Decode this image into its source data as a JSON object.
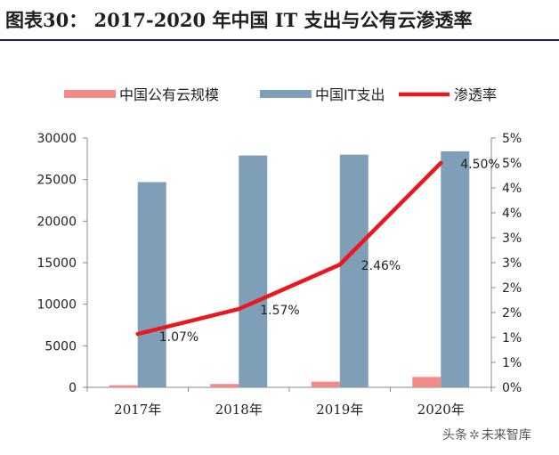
{
  "title": "图表30：  2017-2020 年中国 IT 支出与公有云渗透率",
  "watermark": {
    "prefix": "头条",
    "brand": "未来智库"
  },
  "colors": {
    "cloud": "#f28a87",
    "it": "#7f9fb8",
    "rate": "#e8191e",
    "axis": "#888888",
    "title_rule": "#1a1a6e"
  },
  "chart_data": {
    "type": "bar",
    "categories": [
      "2017年",
      "2018年",
      "2019年",
      "2020年"
    ],
    "series": [
      {
        "name": "中国公有云规模",
        "type": "bar",
        "axis": "left",
        "values": [
          250,
          400,
          680,
          1250
        ]
      },
      {
        "name": "中国IT支出",
        "type": "bar",
        "axis": "left",
        "values": [
          24700,
          27900,
          28000,
          28400
        ]
      },
      {
        "name": "渗透率",
        "type": "line",
        "axis": "right",
        "values": [
          1.07,
          1.57,
          2.46,
          4.5
        ],
        "labels": [
          "1.07%",
          "1.57%",
          "2.46%",
          "4.50%"
        ]
      }
    ],
    "ylim_left": [
      0,
      30000
    ],
    "yticks_left": [
      "0",
      "5000",
      "10000",
      "15000",
      "20000",
      "25000",
      "30000"
    ],
    "ylim_right": [
      0,
      5
    ],
    "yticks_right": [
      "0%",
      "1%",
      "1%",
      "2%",
      "2%",
      "3%",
      "3%",
      "4%",
      "4%",
      "5%",
      "5%"
    ],
    "legend_position": "top",
    "grid": false
  }
}
